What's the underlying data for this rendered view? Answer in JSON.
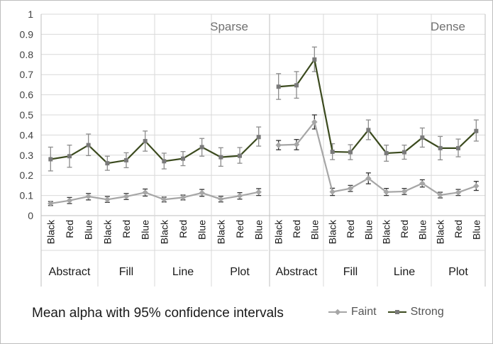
{
  "chart_data": {
    "type": "line",
    "caption": "Mean alpha with 95% confidence intervals",
    "y_ticks": [
      "0",
      "0.1",
      "0.2",
      "0.3",
      "0.4",
      "0.5",
      "0.6",
      "0.7",
      "0.8",
      "0.9",
      "1"
    ],
    "ylim": [
      0,
      1
    ],
    "grid": true,
    "legend_position": "bottom-right",
    "panels": [
      {
        "label": "Sparse",
        "groups": [
          "Abstract",
          "Fill",
          "Line",
          "Plot"
        ],
        "categories": [
          "Black",
          "Red",
          "Blue",
          "Black",
          "Red",
          "Blue",
          "Black",
          "Red",
          "Blue",
          "Black",
          "Red",
          "Blue"
        ],
        "series": [
          {
            "name": "Faint",
            "values": [
              0.06,
              0.075,
              0.095,
              0.08,
              0.095,
              0.115,
              0.08,
              0.09,
              0.113,
              0.082,
              0.098,
              0.117
            ],
            "ci_low": [
              0.05,
              0.06,
              0.078,
              0.066,
              0.08,
              0.097,
              0.068,
              0.078,
              0.096,
              0.068,
              0.082,
              0.1
            ],
            "ci_high": [
              0.07,
              0.09,
              0.11,
              0.095,
              0.11,
              0.132,
              0.092,
              0.102,
              0.13,
              0.096,
              0.114,
              0.134
            ]
          },
          {
            "name": "Strong",
            "values": [
              0.28,
              0.295,
              0.35,
              0.26,
              0.275,
              0.37,
              0.27,
              0.283,
              0.34,
              0.29,
              0.297,
              0.39
            ],
            "ci_low": [
              0.222,
              0.24,
              0.298,
              0.225,
              0.238,
              0.32,
              0.232,
              0.248,
              0.295,
              0.245,
              0.26,
              0.345
            ],
            "ci_high": [
              0.34,
              0.35,
              0.405,
              0.295,
              0.312,
              0.42,
              0.31,
              0.318,
              0.383,
              0.337,
              0.338,
              0.44
            ]
          }
        ]
      },
      {
        "label": "Dense",
        "groups": [
          "Abstract",
          "Fill",
          "Line",
          "Plot"
        ],
        "categories": [
          "Black",
          "Red",
          "Blue",
          "Black",
          "Red",
          "Blue",
          "Black",
          "Red",
          "Blue",
          "Black",
          "Red",
          "Blue"
        ],
        "series": [
          {
            "name": "Faint",
            "values": [
              0.35,
              0.353,
              0.465,
              0.118,
              0.135,
              0.185,
              0.117,
              0.12,
              0.16,
              0.102,
              0.115,
              0.147
            ],
            "ci_low": [
              0.327,
              0.327,
              0.43,
              0.1,
              0.12,
              0.158,
              0.1,
              0.105,
              0.142,
              0.088,
              0.1,
              0.125
            ],
            "ci_high": [
              0.373,
              0.378,
              0.5,
              0.136,
              0.15,
              0.212,
              0.135,
              0.135,
              0.178,
              0.116,
              0.13,
              0.17
            ]
          },
          {
            "name": "Strong",
            "values": [
              0.64,
              0.647,
              0.775,
              0.317,
              0.315,
              0.425,
              0.31,
              0.315,
              0.387,
              0.335,
              0.335,
              0.42
            ],
            "ci_low": [
              0.577,
              0.583,
              0.715,
              0.278,
              0.278,
              0.377,
              0.27,
              0.28,
              0.34,
              0.277,
              0.292,
              0.37
            ],
            "ci_high": [
              0.705,
              0.715,
              0.837,
              0.357,
              0.352,
              0.475,
              0.35,
              0.35,
              0.435,
              0.393,
              0.38,
              0.475
            ]
          }
        ]
      }
    ],
    "series_colors": {
      "Faint": "#a6a6a6",
      "Strong": "#3b4a1e",
      "error_bars": "#000000"
    }
  }
}
